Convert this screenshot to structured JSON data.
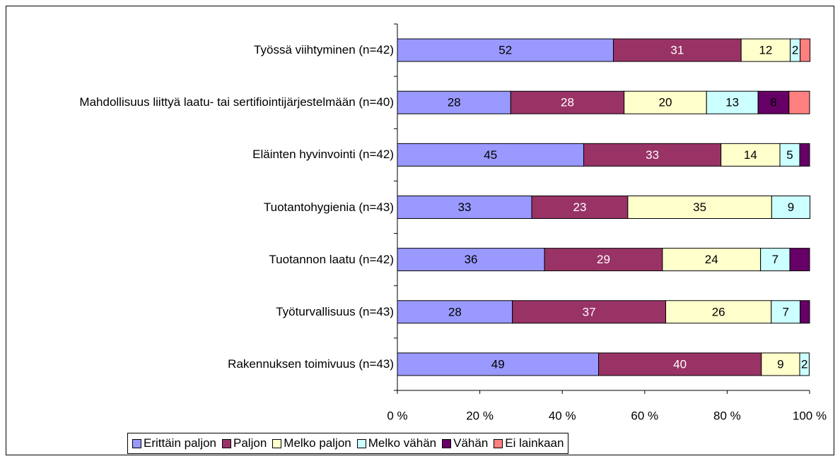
{
  "chart_data": {
    "type": "bar",
    "orientation": "horizontal",
    "stacked": true,
    "categories": [
      "Työssä viihtyminen (n=42)",
      "Mahdollisuus liittyä laatu- tai sertifiointijärjestelmään (n=40)",
      "Eläinten hyvinvointi (n=42)",
      "Tuotantohygienia (n=43)",
      "Tuotannon laatu (n=42)",
      "Työturvallisuus (n=43)",
      "Rakennuksen toimivuus (n=43)"
    ],
    "series": [
      {
        "name": "Erittäin paljon",
        "color": "#9999ff",
        "values": [
          52.4,
          27.5,
          45.2,
          32.6,
          35.7,
          27.9,
          48.8
        ],
        "value_labels": [
          "52",
          "28",
          "45",
          "33",
          "36",
          "28",
          "49"
        ]
      },
      {
        "name": "Paljon",
        "color": "#993366",
        "values": [
          31.0,
          27.5,
          33.3,
          23.3,
          28.6,
          37.2,
          39.5
        ],
        "value_labels": [
          "31",
          "28",
          "33",
          "23",
          "29",
          "37",
          "40"
        ]
      },
      {
        "name": "Melko paljon",
        "color": "#ffffcc",
        "values": [
          11.9,
          20,
          14.3,
          34.9,
          23.8,
          25.6,
          9.3
        ],
        "value_labels": [
          "12",
          "20",
          "14",
          "35",
          "24",
          "26",
          "9"
        ]
      },
      {
        "name": "Melko vähän",
        "color": "#ccffff",
        "values": [
          2.4,
          12.5,
          4.8,
          9.3,
          7.1,
          7.0,
          2.3
        ],
        "value_labels": [
          "2",
          "13",
          "5",
          "9",
          "7",
          "7",
          "2"
        ]
      },
      {
        "name": "Vähän",
        "color": "#660066",
        "values": [
          0,
          7.5,
          2.4,
          0,
          4.8,
          2.3,
          0
        ],
        "value_labels": [
          null,
          "8",
          null,
          null,
          null,
          null,
          null
        ]
      },
      {
        "name": "Ei lainkaan",
        "color": "#ff8080",
        "values": [
          2.4,
          5,
          0,
          0,
          0,
          0,
          0
        ],
        "value_labels": [
          null,
          null,
          null,
          null,
          null,
          null,
          null
        ]
      }
    ],
    "xlim": [
      0,
      100
    ],
    "xticks": [
      {
        "value": 0,
        "label": "0 %"
      },
      {
        "value": 20,
        "label": "20 %"
      },
      {
        "value": 40,
        "label": "40 %"
      },
      {
        "value": 60,
        "label": "60 %"
      },
      {
        "value": 80,
        "label": "80 %"
      },
      {
        "value": 100,
        "label": "100 %"
      }
    ],
    "legend": "bottom"
  }
}
